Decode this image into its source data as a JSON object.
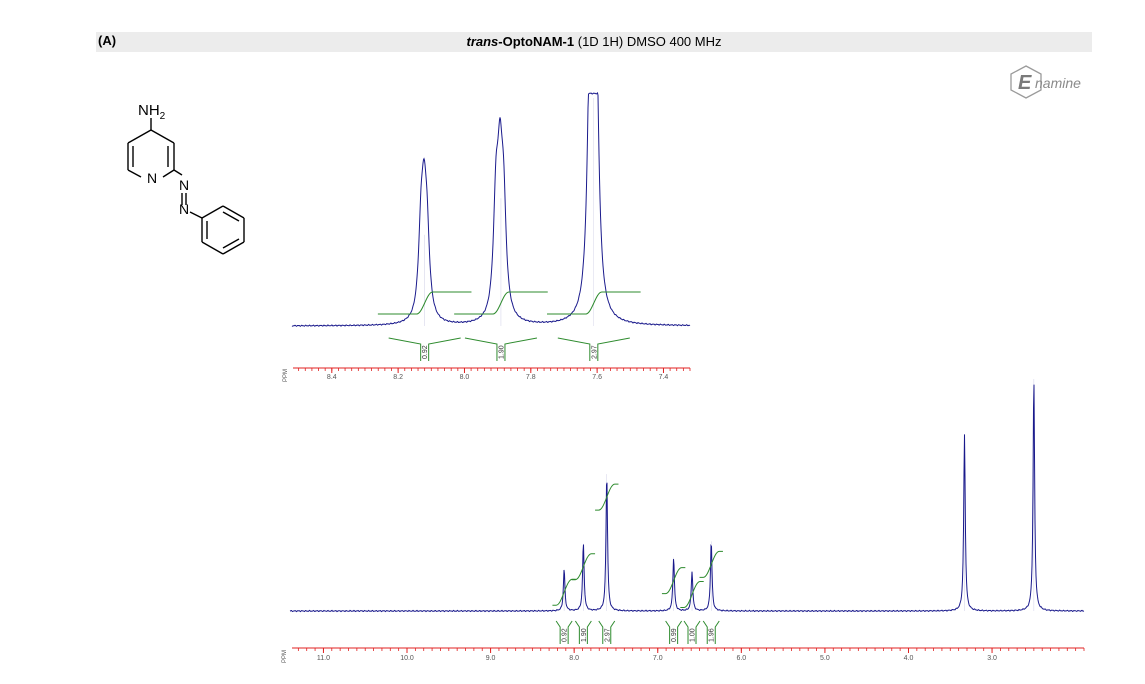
{
  "header": {
    "panel_label": "(A)",
    "title_italic": "trans",
    "title_bold": "-OptoNAM-1",
    "title_rest": " (1D 1H) DMSO 400 MHz"
  },
  "logo": {
    "text_E": "E",
    "text_rest": "namine"
  },
  "molecule": {
    "amine_label": "NH",
    "amine_sub": "2",
    "n_ring": "N",
    "n_azo_1": "N",
    "n_azo_2": "N"
  },
  "colors": {
    "trace": "#1a1a8c",
    "integral": "#2e8b2e",
    "axis": "#e02020",
    "tick_text": "#555555"
  },
  "chart_data": [
    {
      "type": "line",
      "name": "inset-expansion",
      "xlabel": "PPM",
      "xlim": [
        8.52,
        7.32
      ],
      "ticks": [
        8.4,
        8.2,
        8.0,
        7.8,
        7.6,
        7.4
      ],
      "tick_labels": [
        "8.4",
        "8.2",
        "8.0",
        "7.8",
        "7.6",
        "7.4"
      ],
      "peaks": [
        {
          "x": 8.12,
          "height": 0.4,
          "lines": [
            8.131,
            8.122,
            8.113
          ],
          "integral": "0.92"
        },
        {
          "x": 7.89,
          "height": 0.56,
          "lines": [
            7.905,
            7.893,
            7.882
          ],
          "integral": "1.90"
        },
        {
          "x": 7.61,
          "height": 1.0,
          "lines": [
            7.622,
            7.612,
            7.602
          ],
          "integral": "2.97"
        }
      ]
    },
    {
      "type": "line",
      "name": "full-spectrum",
      "xlabel": "PPM",
      "xlim": [
        11.4,
        1.9
      ],
      "ticks": [
        11.0,
        10.0,
        9.0,
        8.0,
        7.0,
        6.0,
        5.0,
        4.0,
        3.0
      ],
      "tick_labels": [
        "11.0",
        "10.0",
        "9.0",
        "8.0",
        "7.0",
        "6.0",
        "5.0",
        "4.0",
        "3.0"
      ],
      "peaks": [
        {
          "x": 8.12,
          "height": 0.18,
          "integral": "0.92"
        },
        {
          "x": 7.89,
          "height": 0.29,
          "integral": "1.90"
        },
        {
          "x": 7.61,
          "height": 0.59,
          "integral": "2.97"
        },
        {
          "x": 6.81,
          "height": 0.23,
          "integral": "0.99"
        },
        {
          "x": 6.59,
          "height": 0.17,
          "integral": "1.00"
        },
        {
          "x": 6.36,
          "height": 0.3,
          "integral": "1.96"
        },
        {
          "x": 3.33,
          "height": 0.76,
          "integral": ""
        },
        {
          "x": 2.5,
          "height": 1.0,
          "integral": ""
        }
      ]
    }
  ]
}
